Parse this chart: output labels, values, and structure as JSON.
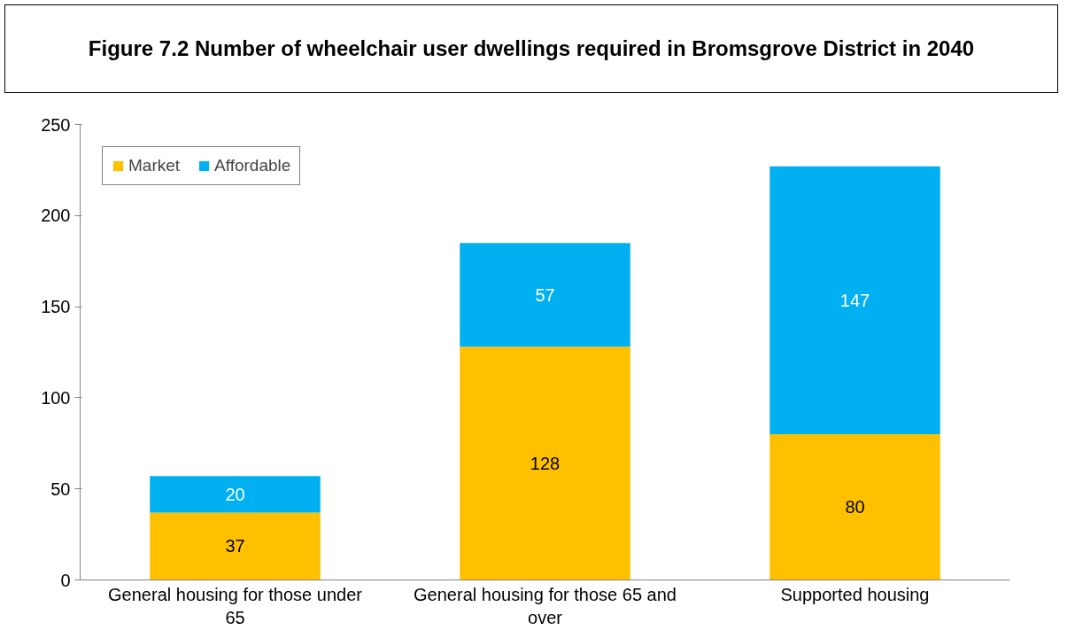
{
  "chart_data": {
    "type": "bar",
    "title": "Figure 7.2 Number of wheelchair user dwellings required in Bromsgrove District in 2040",
    "categories": [
      "General housing for those under 65",
      "General housing for those 65 and over",
      "Supported housing"
    ],
    "stacked": true,
    "series": [
      {
        "name": "Market",
        "color": "#ffc000",
        "values": [
          37,
          128,
          80
        ]
      },
      {
        "name": "Affordable",
        "color": "#00b0f0",
        "values": [
          20,
          57,
          147
        ]
      }
    ],
    "ylim": [
      0,
      250
    ],
    "yticks": [
      0,
      50,
      100,
      150,
      200,
      250
    ],
    "data_labels": true,
    "legend": "top left",
    "grid": false
  }
}
